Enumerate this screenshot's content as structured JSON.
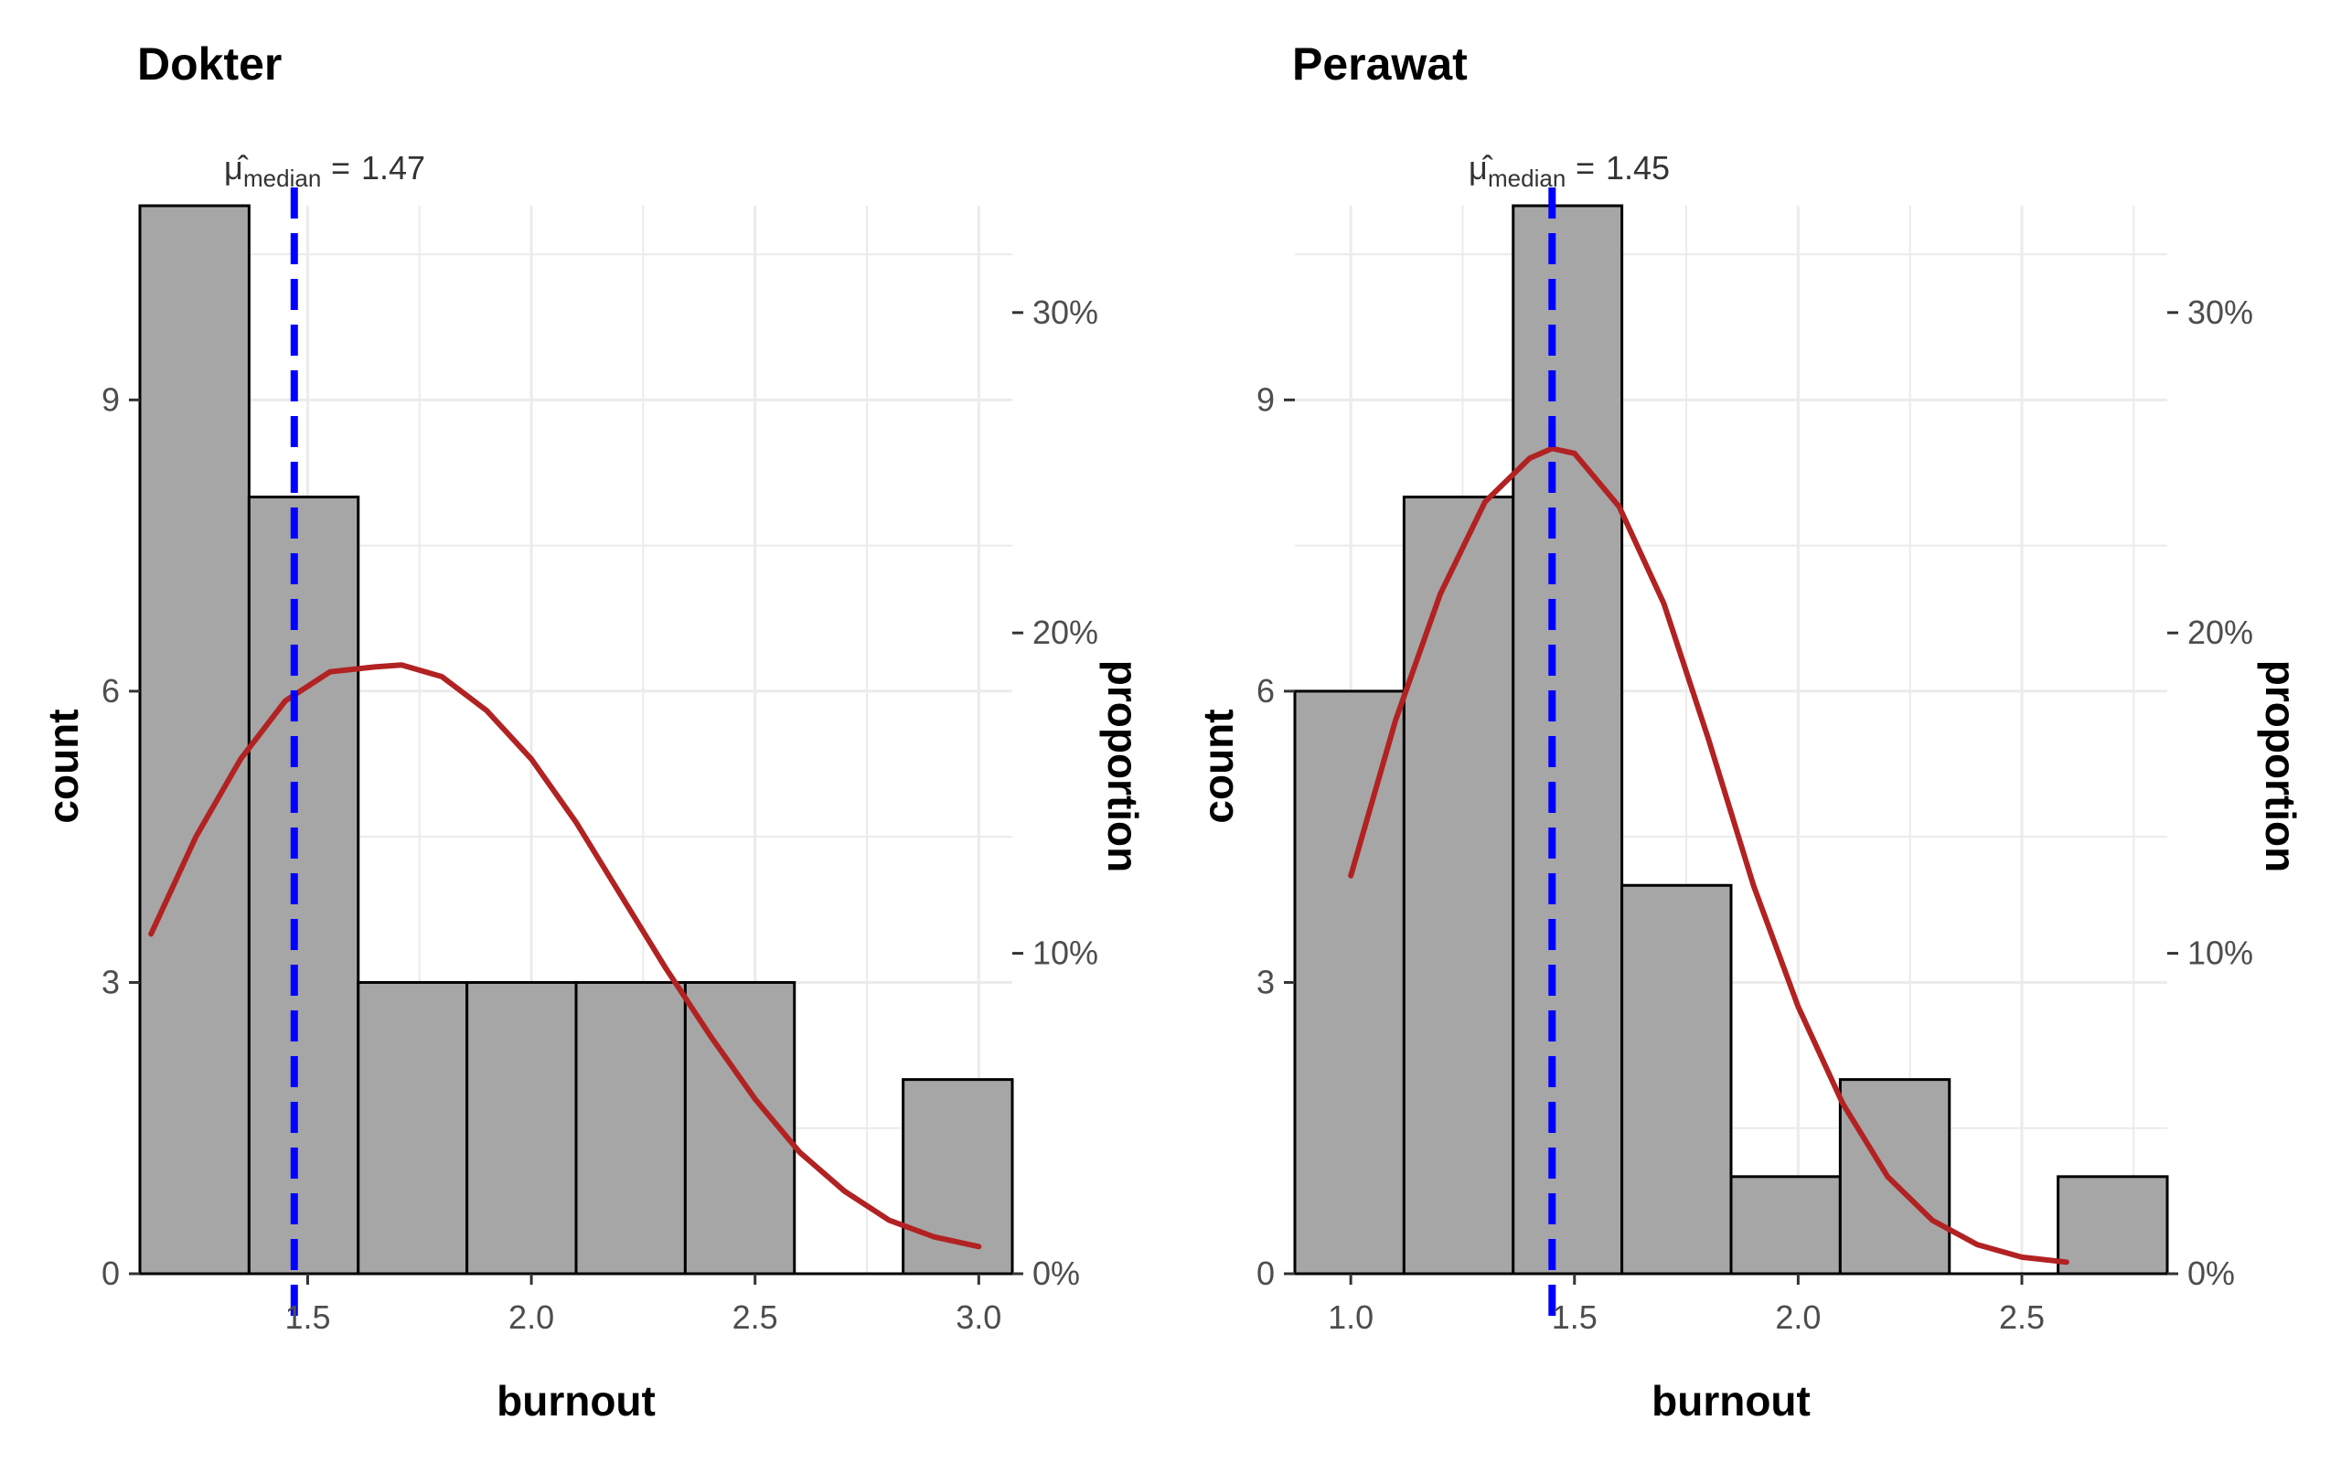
{
  "chart_data": [
    {
      "type": "bar",
      "title": "Dokter",
      "xlabel": "burnout",
      "ylabel": "count",
      "secondary_ylabel": "proportion",
      "xlim": [
        1.125,
        3.075
      ],
      "ylim": [
        0,
        11
      ],
      "x_ticks": [
        "1.5",
        "2.0",
        "2.5",
        "3.0"
      ],
      "x_tick_values": [
        1.5,
        2.0,
        2.5,
        3.0
      ],
      "y_ticks": [
        "0",
        "3",
        "6",
        "9"
      ],
      "y_tick_values": [
        0,
        3,
        6,
        9
      ],
      "secondary_ticks": [
        "0%",
        "10%",
        "20%",
        "30%"
      ],
      "secondary_tick_values": [
        0,
        0.1,
        0.2,
        0.3
      ],
      "total_count": 33,
      "bins": [
        {
          "x0": 1.125,
          "x1": 1.369,
          "count": 11
        },
        {
          "x0": 1.369,
          "x1": 1.613,
          "count": 8
        },
        {
          "x0": 1.613,
          "x1": 1.856,
          "count": 3
        },
        {
          "x0": 1.856,
          "x1": 2.1,
          "count": 3
        },
        {
          "x0": 2.1,
          "x1": 2.344,
          "count": 3
        },
        {
          "x0": 2.344,
          "x1": 2.588,
          "count": 3
        },
        {
          "x0": 2.588,
          "x1": 2.831,
          "count": 0
        },
        {
          "x0": 2.831,
          "x1": 3.075,
          "count": 2
        }
      ],
      "median_line": {
        "value": 1.47,
        "label_value": "1.47",
        "label_symbol": "μ̂",
        "label_sub": "median",
        "label_eq": "="
      },
      "density_curve": {
        "x": [
          1.15,
          1.25,
          1.35,
          1.45,
          1.55,
          1.65,
          1.71,
          1.8,
          1.9,
          2.0,
          2.1,
          2.2,
          2.3,
          2.4,
          2.5,
          2.6,
          2.7,
          2.8,
          2.9,
          3.0
        ],
        "y": [
          3.5,
          4.5,
          5.3,
          5.9,
          6.2,
          6.25,
          6.27,
          6.15,
          5.8,
          5.3,
          4.65,
          3.9,
          3.15,
          2.45,
          1.8,
          1.25,
          0.85,
          0.55,
          0.38,
          0.28
        ]
      },
      "grid": true,
      "colors": {
        "bar_fill": "#a6a6a6",
        "bar_edge": "#000000",
        "median": "#0000ff",
        "density": "#b22222",
        "grid": "#ebebeb"
      }
    },
    {
      "type": "bar",
      "title": "Perawat",
      "xlabel": "burnout",
      "ylabel": "count",
      "secondary_ylabel": "proportion",
      "xlim": [
        0.875,
        2.825
      ],
      "ylim": [
        0,
        11
      ],
      "x_ticks": [
        "1.0",
        "1.5",
        "2.0",
        "2.5"
      ],
      "x_tick_values": [
        1.0,
        1.5,
        2.0,
        2.5
      ],
      "y_ticks": [
        "0",
        "3",
        "6",
        "9"
      ],
      "y_tick_values": [
        0,
        3,
        6,
        9
      ],
      "secondary_ticks": [
        "0%",
        "10%",
        "20%",
        "30%"
      ],
      "secondary_tick_values": [
        0,
        0.1,
        0.2,
        0.3
      ],
      "total_count": 33,
      "bins": [
        {
          "x0": 0.875,
          "x1": 1.119,
          "count": 6
        },
        {
          "x0": 1.119,
          "x1": 1.363,
          "count": 8
        },
        {
          "x0": 1.363,
          "x1": 1.606,
          "count": 11
        },
        {
          "x0": 1.606,
          "x1": 1.85,
          "count": 4
        },
        {
          "x0": 1.85,
          "x1": 2.094,
          "count": 1
        },
        {
          "x0": 2.094,
          "x1": 2.338,
          "count": 2
        },
        {
          "x0": 2.338,
          "x1": 2.581,
          "count": 0
        },
        {
          "x0": 2.581,
          "x1": 2.825,
          "count": 1
        }
      ],
      "median_line": {
        "value": 1.45,
        "label_value": "1.45",
        "label_symbol": "μ̂",
        "label_sub": "median",
        "label_eq": "="
      },
      "density_curve": {
        "x": [
          1.0,
          1.1,
          1.2,
          1.3,
          1.4,
          1.45,
          1.5,
          1.6,
          1.7,
          1.8,
          1.9,
          2.0,
          2.1,
          2.2,
          2.3,
          2.4,
          2.5,
          2.6
        ],
        "y": [
          4.1,
          5.7,
          7.0,
          7.95,
          8.4,
          8.5,
          8.45,
          7.9,
          6.9,
          5.5,
          4.0,
          2.75,
          1.75,
          1.0,
          0.55,
          0.3,
          0.17,
          0.12
        ]
      },
      "grid": true,
      "colors": {
        "bar_fill": "#a6a6a6",
        "bar_edge": "#000000",
        "median": "#0000ff",
        "density": "#b22222",
        "grid": "#ebebeb"
      }
    }
  ]
}
